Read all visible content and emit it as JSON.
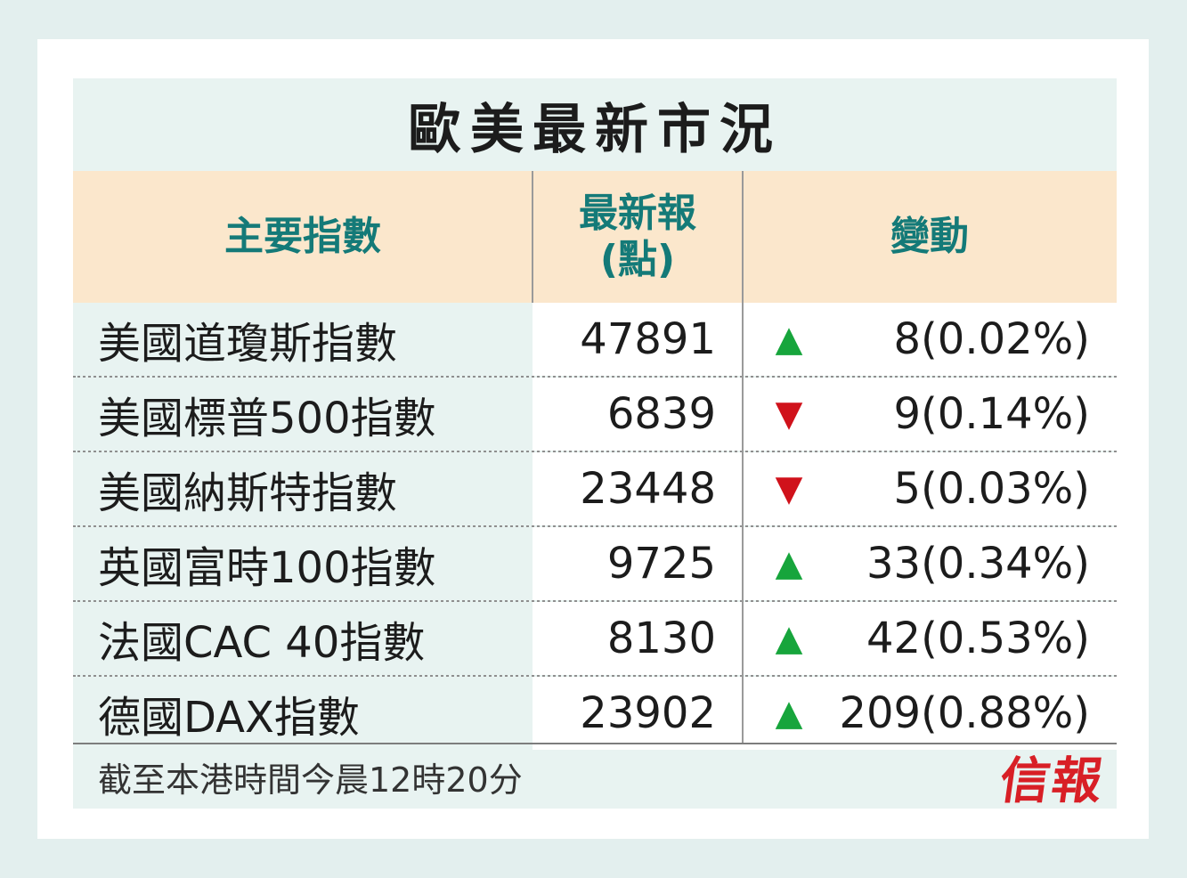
{
  "title": "歐美最新市況",
  "header": {
    "col1": "主要指數",
    "col2_line1": "最新報",
    "col2_line2": "(點)",
    "col3": "變動"
  },
  "rows": [
    {
      "name": "美國道瓊斯指數",
      "value": "47891",
      "direction": "up",
      "change": "8(0.02%)"
    },
    {
      "name": "美國標普500指數",
      "value": "6839",
      "direction": "down",
      "change": "9(0.14%)"
    },
    {
      "name": "美國納斯特指數",
      "value": "23448",
      "direction": "down",
      "change": "5(0.03%)"
    },
    {
      "name": "英國富時100指數",
      "value": "9725",
      "direction": "up",
      "change": "33(0.34%)"
    },
    {
      "name": "法國CAC 40指數",
      "value": "8130",
      "direction": "up",
      "change": "42(0.53%)"
    },
    {
      "name": "德國DAX指數",
      "value": "23902",
      "direction": "up",
      "change": "209(0.88%)"
    }
  ],
  "arrows": {
    "up": "▲",
    "down": "▼"
  },
  "colors": {
    "up": "#17a53c",
    "down": "#d0121b",
    "header_text": "#147a78",
    "header_bg": "#fbe7cc",
    "logo": "#d81f26"
  },
  "footer": "截至本港時間今晨12時20分",
  "logo": "信報"
}
